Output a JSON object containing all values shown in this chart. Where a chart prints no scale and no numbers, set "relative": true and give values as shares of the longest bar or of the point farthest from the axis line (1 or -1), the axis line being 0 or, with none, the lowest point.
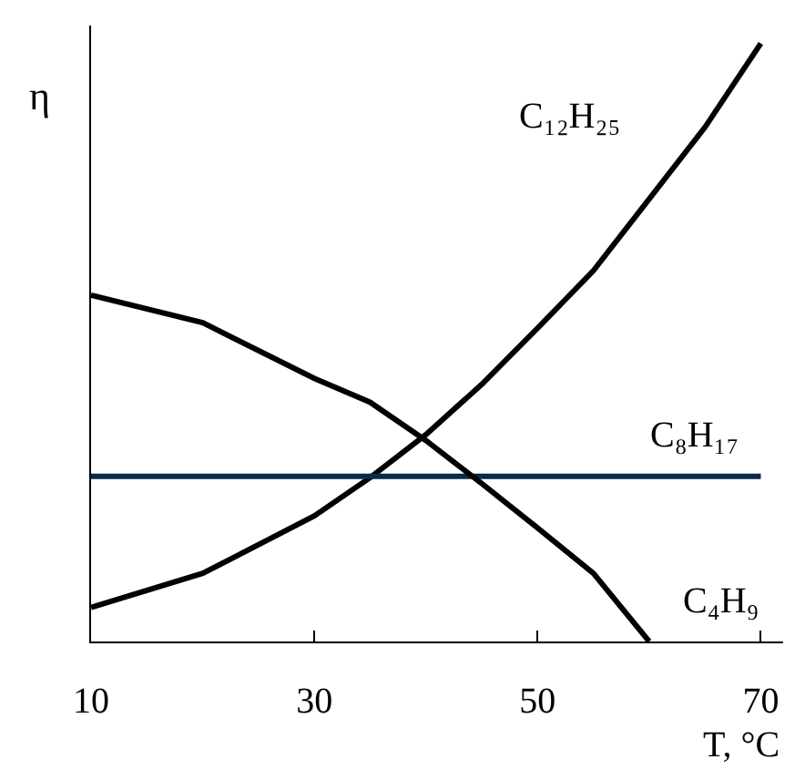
{
  "chart_data": {
    "type": "line",
    "relative": true,
    "xlabel": "T, °C",
    "ylabel": "η",
    "xlim": [
      10,
      72
    ],
    "xticks": [
      10,
      30,
      50,
      70
    ],
    "legend": false,
    "marker": "none",
    "line_style": "solid",
    "series": [
      {
        "name": "C₁₂H₂₅",
        "color": "#000000",
        "x": [
          10,
          20,
          30,
          35,
          40,
          45,
          50,
          55,
          60,
          65,
          70
        ],
        "values": [
          0.057,
          0.114,
          0.21,
          0.274,
          0.346,
          0.43,
          0.524,
          0.62,
          0.74,
          0.86,
          1
        ]
      },
      {
        "name": "C₈H₁₇",
        "color": "#0a2a4a",
        "x": [
          10,
          70
        ],
        "values": [
          0.276,
          0.276
        ]
      },
      {
        "name": "C₄H₉",
        "color": "#000000",
        "x": [
          10,
          20,
          30,
          35,
          40,
          45,
          50,
          55,
          60
        ],
        "values": [
          0.579,
          0.533,
          0.44,
          0.4,
          0.336,
          0.264,
          0.19,
          0.114,
          0
        ]
      }
    ]
  }
}
